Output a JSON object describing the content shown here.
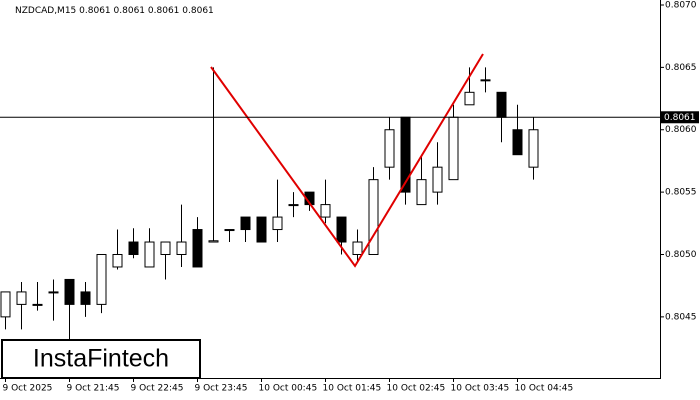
{
  "chart_data": {
    "type": "candlestick",
    "symbol": "NZDCAD,M15",
    "header_values": [
      0.8061,
      0.8061,
      0.8061,
      0.8061
    ],
    "brand": "InstaFintech",
    "categories": [
      "9 Oct 2025",
      null,
      null,
      null,
      "9 Oct 21:45",
      null,
      null,
      null,
      "9 Oct 22:45",
      null,
      null,
      null,
      "9 Oct 23:45",
      null,
      null,
      null,
      "10 Oct 00:45",
      null,
      null,
      null,
      "10 Oct 01:45",
      null,
      null,
      null,
      "10 Oct 02:45",
      null,
      null,
      null,
      "10 Oct 03:45",
      null,
      null,
      null,
      "10 Oct 04:45",
      null
    ],
    "open": [
      0.8045,
      0.8046,
      0.8046,
      0.8047,
      0.8048,
      0.8047,
      0.8046,
      0.8049,
      0.8051,
      0.8049,
      0.805,
      0.805,
      0.8052,
      0.8051,
      0.8052,
      0.8053,
      0.8053,
      0.8052,
      0.8054,
      0.8055,
      0.8053,
      0.8053,
      0.805,
      0.805,
      0.8057,
      0.8061,
      0.8054,
      0.8055,
      0.8056,
      0.8062,
      0.8064,
      0.8063,
      0.806,
      0.8057
    ],
    "high": [
      0.8047,
      0.80478,
      0.80478,
      0.8048,
      0.8048,
      0.80478,
      0.805,
      0.8052,
      0.80521,
      0.80521,
      0.8051,
      0.8054,
      0.8053,
      0.8065,
      0.8052,
      0.8053,
      0.8053,
      0.8056,
      0.8055,
      0.8055,
      0.8056,
      0.8053,
      0.8052,
      0.8057,
      0.8061,
      0.8061,
      0.8058,
      0.8059,
      0.8062,
      0.8065,
      0.8065,
      0.8063,
      0.8062,
      0.8061
    ],
    "low": [
      0.8044,
      0.8044,
      0.80455,
      0.80447,
      0.8043,
      0.8045,
      0.80453,
      0.80488,
      0.80497,
      0.8049,
      0.8048,
      0.8049,
      0.8049,
      0.8051,
      0.8051,
      0.8051,
      0.8051,
      0.8051,
      0.8053,
      0.80535,
      0.80525,
      0.805,
      0.80494,
      0.805,
      0.8056,
      0.8054,
      0.8054,
      0.8054,
      0.8056,
      0.8062,
      0.8063,
      0.8059,
      0.8058,
      0.8056
    ],
    "close": [
      0.8047,
      0.8047,
      0.8046,
      0.8047,
      0.8046,
      0.8046,
      0.805,
      0.805,
      0.805,
      0.8051,
      0.8051,
      0.8051,
      0.8049,
      0.80511,
      0.8052,
      0.8052,
      0.8051,
      0.8053,
      0.8054,
      0.8054,
      0.8054,
      0.8051,
      0.8051,
      0.8056,
      0.806,
      0.8055,
      0.8056,
      0.8057,
      0.8061,
      0.8063,
      0.8064,
      0.8061,
      0.8058,
      0.806
    ],
    "last_price": 0.8061,
    "ylim": [
      0.80401,
      0.80704
    ],
    "yticks": [
      0.8045,
      {
        "value": 0.805,
        "label": "0.8050"
      },
      0.8055,
      {
        "value": 0.806,
        "label": "0.8060"
      },
      0.8065,
      {
        "value": 0.807,
        "label": "0.8070"
      }
    ]
  }
}
